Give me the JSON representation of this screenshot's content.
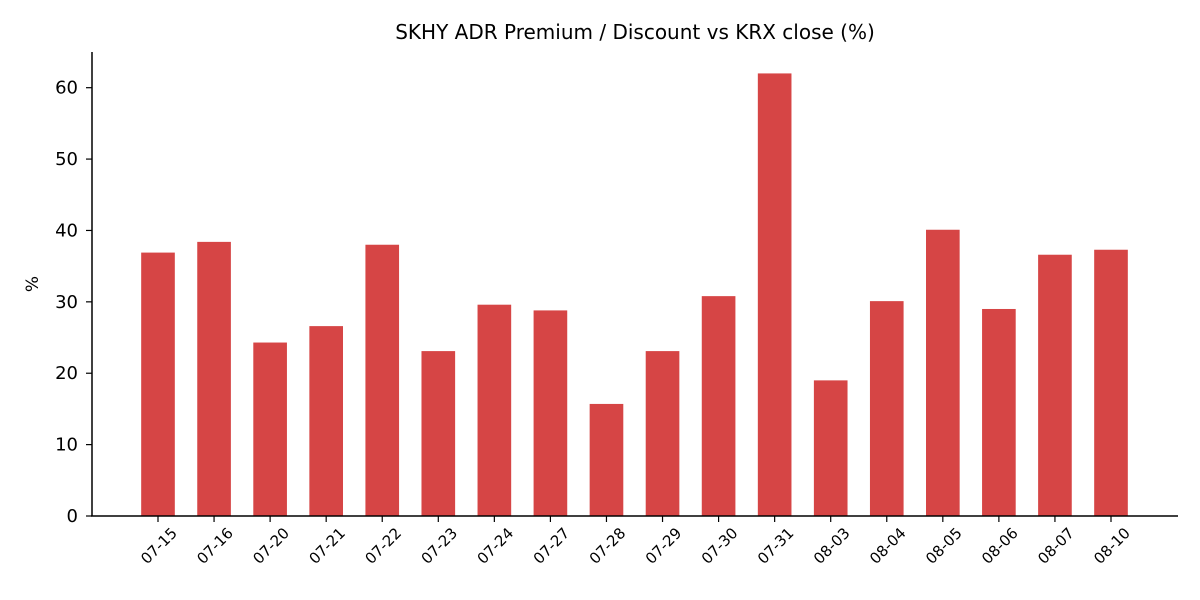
{
  "chart_data": {
    "type": "bar",
    "title": "SKHY ADR Premium / Discount vs KRX close (%)",
    "xlabel": "",
    "ylabel": "%",
    "ylim": [
      0,
      65
    ],
    "yticks": [
      0,
      10,
      20,
      30,
      40,
      50,
      60
    ],
    "grid": false,
    "bar_color": "#d64545",
    "categories": [
      "07-15",
      "07-16",
      "07-20",
      "07-21",
      "07-22",
      "07-23",
      "07-24",
      "07-27",
      "07-28",
      "07-29",
      "07-30",
      "07-31",
      "08-03",
      "08-04",
      "08-05",
      "08-06",
      "08-07",
      "08-10"
    ],
    "values": [
      36.9,
      38.4,
      24.3,
      26.6,
      38.0,
      23.1,
      29.6,
      28.8,
      15.7,
      23.1,
      30.8,
      62.0,
      19.0,
      30.1,
      40.1,
      29.0,
      36.6,
      37.3
    ]
  }
}
